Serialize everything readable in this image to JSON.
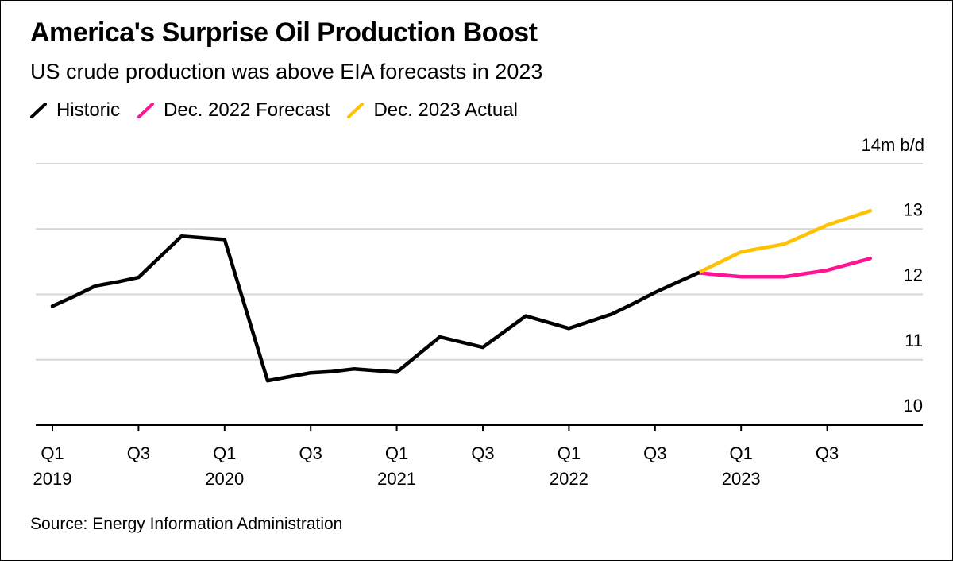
{
  "chart_data": {
    "type": "line",
    "title": "America's Surprise Oil Production Boost",
    "subtitle": "US crude production was above EIA forecasts in 2023",
    "unit_label": "14m b/d",
    "source": "Source: Energy Information Administration",
    "ylim": [
      10,
      14
    ],
    "y_ticks": [
      "10",
      "11",
      "12",
      "13"
    ],
    "grid": true,
    "x_ticks": [
      {
        "q": 0,
        "line1": "Q1",
        "line2": "2019"
      },
      {
        "q": 2,
        "line1": "Q3",
        "line2": ""
      },
      {
        "q": 4,
        "line1": "Q1",
        "line2": "2020"
      },
      {
        "q": 6,
        "line1": "Q3",
        "line2": ""
      },
      {
        "q": 8,
        "line1": "Q1",
        "line2": "2021"
      },
      {
        "q": 10,
        "line1": "Q3",
        "line2": ""
      },
      {
        "q": 12,
        "line1": "Q1",
        "line2": "2022"
      },
      {
        "q": 14,
        "line1": "Q3",
        "line2": ""
      },
      {
        "q": 16,
        "line1": "Q1",
        "line2": "2023"
      },
      {
        "q": 18,
        "line1": "Q3",
        "line2": ""
      }
    ],
    "series": [
      {
        "name": "Historic",
        "color": "#000000",
        "x": [
          0,
          0.5,
          1,
          1.5,
          2,
          3,
          4,
          5,
          5.5,
          6,
          6.5,
          7,
          8,
          9,
          10,
          11,
          12,
          12.5,
          13,
          13.5,
          14,
          15
        ],
        "values": [
          11.82,
          11.97,
          12.13,
          12.19,
          12.26,
          12.89,
          12.84,
          10.68,
          10.74,
          10.8,
          10.82,
          10.86,
          10.81,
          11.35,
          11.19,
          11.67,
          11.48,
          11.59,
          11.7,
          11.86,
          12.03,
          12.33
        ]
      },
      {
        "name": "Dec. 2022 Forecast",
        "color": "#ff1493",
        "x": [
          15,
          16,
          17,
          18,
          19
        ],
        "values": [
          12.33,
          12.27,
          12.27,
          12.37,
          12.55
        ]
      },
      {
        "name": "Dec. 2023 Actual",
        "color": "#ffc100",
        "x": [
          15,
          16,
          17,
          18,
          19
        ],
        "values": [
          12.33,
          12.65,
          12.77,
          13.06,
          13.28
        ]
      }
    ]
  }
}
